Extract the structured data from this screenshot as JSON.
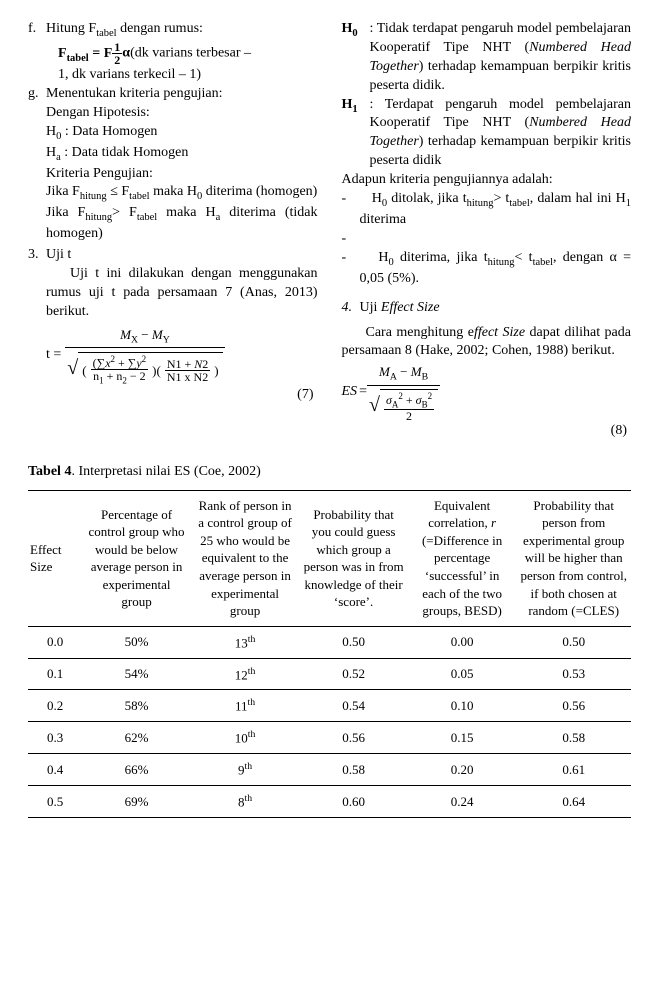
{
  "left": {
    "f_marker": "f.",
    "f_line1_a": "Hitung F",
    "f_line1_b": " dengan rumus:",
    "f_formula_a": "F",
    "f_formula_b": " = F",
    "f_formula_c": "α",
    "f_formula_d": "(dk varians terbesar –",
    "f_line3": "1, dk varians terkecil – 1)",
    "g_marker": "g.",
    "g_line1": "Menentukan kriteria pengujian:",
    "g_line2": "Dengan Hipotesis:",
    "g_h0": "H",
    "g_h0_txt": " : Data Homogen",
    "g_ha": "H",
    "g_ha_txt": " : Data tidak Homogen",
    "g_kp": "Kriteria Pengujian:",
    "g_j1_a": "Jika F",
    "g_j1_b": " ≤ F",
    "g_j1_c": " maka H",
    "g_j1_d": " diterima (homogen)",
    "g_j2_a": "Jika F",
    "g_j2_b": "> F",
    "g_j2_c": " maka H",
    "g_j2_d": " diterima (tidak homogen)",
    "uji_t_num": "3.",
    "uji_t_title": "Uji t",
    "uji_t_para": "Uji t ini dilakukan dengan menggunakan rumus uji t pada persamaan 7 (Anas, 2013) berikut.",
    "eq7_label": "(7)"
  },
  "right": {
    "h0_label": "H0",
    "h0_body_a": ": Tidak terdapat pengaruh model pembelajaran Kooperatif Tipe NHT (",
    "h0_body_i": "Numbered Head Together",
    "h0_body_b": ") terhadap kemampuan berpikir kritis peserta didik.",
    "h1_label": "H1",
    "h1_body_a": ": Terdapat pengaruh model pembelajaran Kooperatif Tipe NHT (",
    "h1_body_i": "Numbered Head Together",
    "h1_body_b": ") terhadap kemampuan berpikir kritis peserta didik",
    "kriteria": "Adapun kriteria pengujiannya adalah:",
    "b1_a": "H",
    "b1_b": " ditolak, jika t",
    "b1_c": "> t",
    "b1_d": ", dalam hal ini H",
    "b1_e": " diterima",
    "b2_a": "H",
    "b2_b": " diterima, jika t",
    "b2_c": "< t",
    "b2_d": ", dengan α = 0,05 (5%).",
    "eff_num": "4.",
    "eff_title_a": "Uji ",
    "eff_title_i": "Effect Size",
    "eff_para_a": "Cara menghitung e",
    "eff_para_i": "ffect Size",
    "eff_para_b": " dapat dilihat pada persamaan 8  (Hake, 2002; Cohen, 1988)  berikut.",
    "eq8_lhs": "ES = ",
    "eq8_num": "M_A − M_B",
    "eq8_den_inner": "σ_A² + σ_B²",
    "eq8_den_two": "2",
    "eq8_label": "(8)"
  },
  "table": {
    "title_bold": "Tabel 4",
    "title_rest": ". Interpretasi nilai ES  (Coe, 2002)",
    "headers": [
      "Effect Size",
      "Percentage of control group who would be below average person in experimental group",
      "Rank of person in a control group of 25 who would be equivalent to the average person in experimental group",
      "Probability that you could guess which group a person was in from knowledge of their ‘score’.",
      "Equivalent correlation, r (=Difference in percentage ‘successful’ in each of the two groups, BESD)",
      "Probability that person from experimental group will be higher than person from control, if both chosen at random (=CLES)"
    ],
    "rows": [
      {
        "es": "0.0",
        "pct": "50%",
        "rank": "13",
        "rank_sup": "th",
        "p1": "0.50",
        "r": "0.00",
        "p2": "0.50"
      },
      {
        "es": "0.1",
        "pct": "54%",
        "rank": "12",
        "rank_sup": "th",
        "p1": "0.52",
        "r": "0.05",
        "p2": "0.53"
      },
      {
        "es": "0.2",
        "pct": "58%",
        "rank": "11",
        "rank_sup": "th",
        "p1": "0.54",
        "r": "0.10",
        "p2": "0.56"
      },
      {
        "es": "0.3",
        "pct": "62%",
        "rank": "10",
        "rank_sup": "th",
        "p1": "0.56",
        "r": "0.15",
        "p2": "0.58"
      },
      {
        "es": "0.4",
        "pct": "66%",
        "rank": "9",
        "rank_sup": "th",
        "p1": "0.58",
        "r": "0.20",
        "p2": "0.61"
      },
      {
        "es": "0.5",
        "pct": "69%",
        "rank": "8",
        "rank_sup": "th",
        "p1": "0.60",
        "r": "0.24",
        "p2": "0.64"
      }
    ]
  }
}
